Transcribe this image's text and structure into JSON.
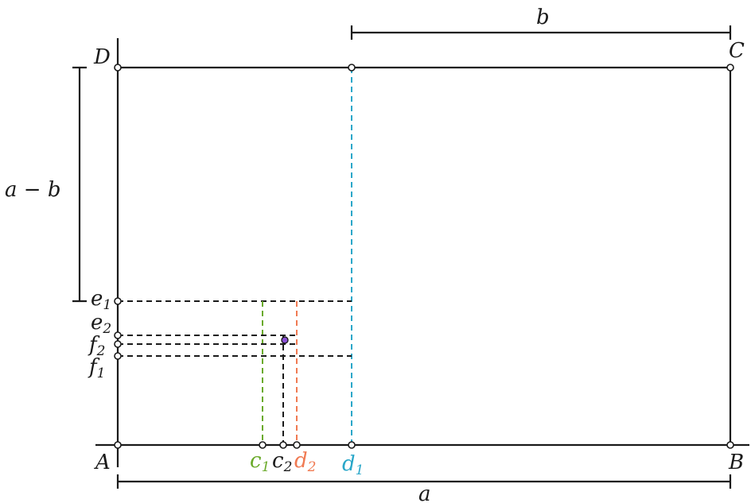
{
  "labels": {
    "A": "A",
    "B": "B",
    "C": "C",
    "D": "D",
    "a": "a",
    "b": "b",
    "a_minus_b": "a − b",
    "c1": {
      "base": "c",
      "sub": "1"
    },
    "c2": {
      "base": "c",
      "sub": "2"
    },
    "d1": {
      "base": "d",
      "sub": "1"
    },
    "d2": {
      "base": "d",
      "sub": "2"
    },
    "e1": {
      "base": "e",
      "sub": "1"
    },
    "e2": {
      "base": "e",
      "sub": "2"
    },
    "f1": {
      "base": "f",
      "sub": "1"
    },
    "f2": {
      "base": "f",
      "sub": "2"
    }
  },
  "colors": {
    "stroke": "#1a1a1a",
    "green": "#6aaa2a",
    "orange": "#f07a52",
    "cyan": "#2aa7c9",
    "point_fill": "#ffffff",
    "center_point": "#8a4fd6"
  }
}
